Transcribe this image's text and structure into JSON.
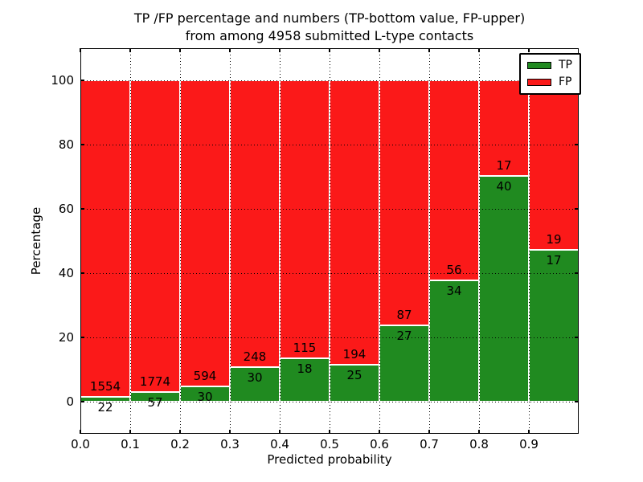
{
  "figure": {
    "title_line1": "TP /FP percentage and numbers (TP-bottom value, FP-upper)",
    "title_line2": "from among 4958 submitted L-type contacts"
  },
  "chart_data": {
    "type": "bar",
    "subtype": "stacked-percentage-histogram",
    "title": "TP /FP percentage and numbers (TP-bottom value, FP-upper) from among 4958 submitted L-type contacts",
    "xlabel": "Predicted probability",
    "ylabel": "Percentage",
    "xlim": [
      0.0,
      1.0
    ],
    "ylim": [
      -10,
      110
    ],
    "grid": "dotted",
    "x_tick_labels": [
      "0.0",
      "0.1",
      "0.2",
      "0.3",
      "0.4",
      "0.5",
      "0.6",
      "0.7",
      "0.8",
      "0.9"
    ],
    "y_ticks": [
      0,
      20,
      40,
      60,
      80,
      100
    ],
    "bin_edges": [
      0.0,
      0.1,
      0.2,
      0.3,
      0.4,
      0.5,
      0.6,
      0.7,
      0.8,
      0.9,
      1.0
    ],
    "categories": [
      "0.0-0.1",
      "0.1-0.2",
      "0.2-0.3",
      "0.3-0.4",
      "0.4-0.5",
      "0.5-0.6",
      "0.6-0.7",
      "0.7-0.8",
      "0.8-0.9",
      "0.9-1.0"
    ],
    "series": [
      {
        "name": "TP",
        "color": "#208a20",
        "counts": [
          22,
          57,
          30,
          30,
          18,
          25,
          27,
          34,
          40,
          17
        ],
        "percent": [
          1.4,
          3.11,
          4.81,
          10.79,
          13.53,
          11.42,
          23.68,
          37.78,
          70.18,
          47.22
        ]
      },
      {
        "name": "FP",
        "color": "#fb1919",
        "counts": [
          1554,
          1774,
          594,
          248,
          115,
          194,
          87,
          56,
          17,
          19
        ],
        "percent": [
          98.6,
          96.89,
          95.19,
          89.21,
          86.47,
          88.58,
          76.32,
          62.22,
          29.82,
          52.78
        ]
      }
    ],
    "legend": {
      "position": "upper right",
      "entries": [
        "TP",
        "FP"
      ]
    },
    "total_contacts": 4958
  },
  "colors": {
    "tp_green": "#208a20",
    "fp_red": "#fb1919",
    "background": "#ffffff",
    "axis": "#000000"
  }
}
